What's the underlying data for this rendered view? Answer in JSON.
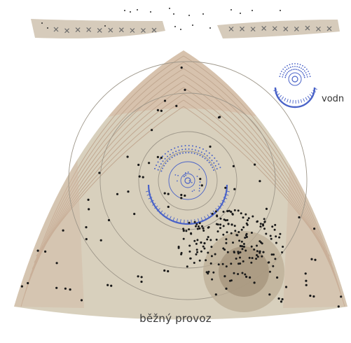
{
  "caption": "běžný provoz",
  "legend": {
    "label": "vodn",
    "icon": "water-feature-icon"
  },
  "colors": {
    "background": "#ffffff",
    "field": "#d8d0bd",
    "field_edge": "#d2b8a2",
    "stripe": "#c3ab95",
    "bench": "#d6cbbb",
    "rings": "#a39c8c",
    "crowd_spot": "#b8aa92",
    "crowd_spot_inner": "#a6977f",
    "water": "#4a63c8",
    "people": "#1a1a1a"
  }
}
